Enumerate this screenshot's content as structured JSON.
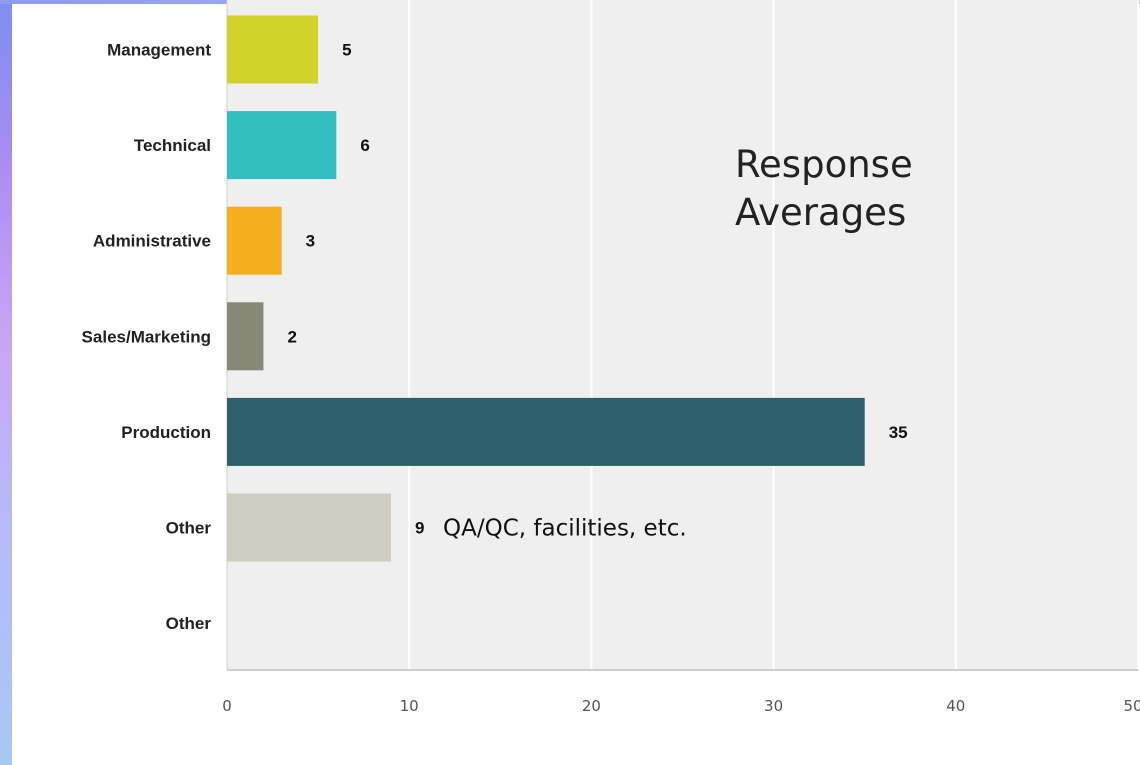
{
  "chart_data": {
    "type": "bar",
    "orientation": "horizontal",
    "title": "Response Averages",
    "categories": [
      "Management",
      "Technical",
      "Administrative",
      "Sales/Marketing",
      "Production",
      "Other",
      "Other"
    ],
    "values": [
      5,
      6,
      3,
      2,
      35,
      9,
      null
    ],
    "value_labels": [
      "5",
      "6",
      "3",
      "2",
      "35",
      "9",
      ""
    ],
    "bar_colors": [
      "#d1d22a",
      "#33bfbf",
      "#f5ae1d",
      "#888876",
      "#2d5f6b",
      "#cfcdbf",
      "#cccccc"
    ],
    "annotations": [
      {
        "category_index": 5,
        "text": "QA/QC, facilities, etc."
      }
    ],
    "xlim": [
      0,
      50
    ],
    "x_ticks": [
      "0",
      "10",
      "20",
      "30",
      "40",
      "50"
    ],
    "xlabel": "",
    "ylabel": "",
    "grid": true,
    "background_color": "#efefef",
    "gridline_color": "#ffffff"
  }
}
